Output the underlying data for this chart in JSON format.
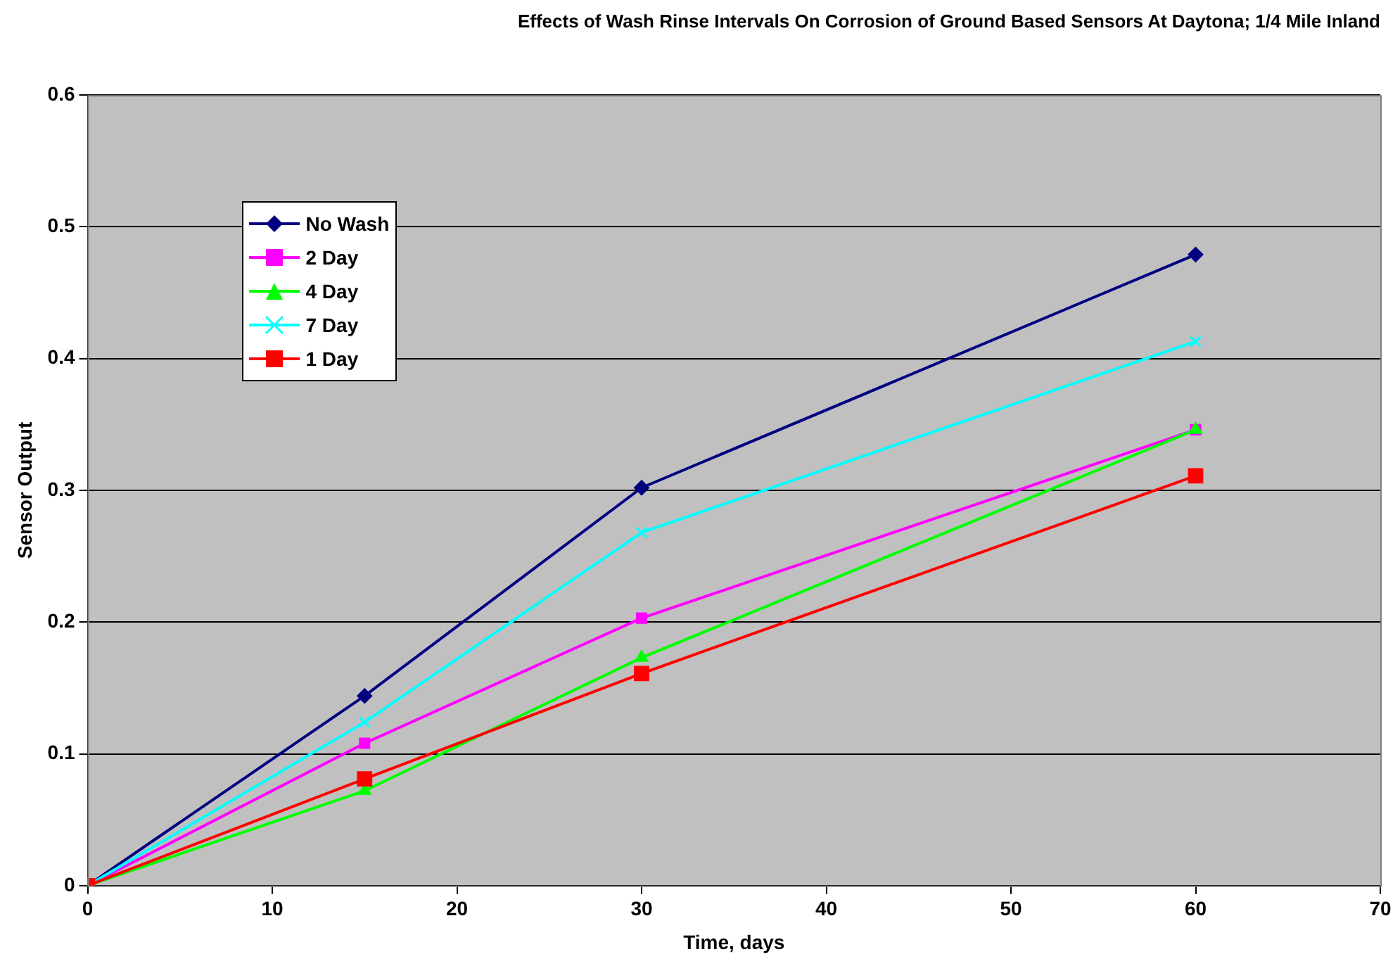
{
  "chart_data": {
    "type": "line",
    "title": "Effects of Wash Rinse Intervals On Corrosion of Ground Based Sensors At Daytona; 1/4 Mile Inland",
    "xlabel": "Time, days",
    "ylabel": "Sensor Output",
    "x": [
      0,
      15,
      30,
      60
    ],
    "series": [
      {
        "name": "No Wash",
        "color": "#000080",
        "marker": "diamond",
        "values": [
          0,
          0.144,
          0.302,
          0.479
        ]
      },
      {
        "name": "2 Day",
        "color": "#ff00ff",
        "marker": "square",
        "values": [
          0,
          0.108,
          0.203,
          0.346
        ]
      },
      {
        "name": "4 Day",
        "color": "#00ff00",
        "marker": "triangle",
        "values": [
          0,
          0.072,
          0.173,
          0.346
        ]
      },
      {
        "name": "7 Day",
        "color": "#00ffff",
        "marker": "cross",
        "values": [
          0,
          0.124,
          0.268,
          0.413
        ]
      },
      {
        "name": "1 Day",
        "color": "#ff0000",
        "marker": "square",
        "values": [
          0,
          0.081,
          0.161,
          0.311
        ]
      }
    ],
    "xlim": [
      0,
      70
    ],
    "xticks": [
      0,
      10,
      20,
      30,
      40,
      50,
      60,
      70
    ],
    "ylim": [
      0,
      0.6
    ],
    "yticks": [
      0,
      0.1,
      0.2,
      0.3,
      0.4,
      0.5,
      0.6
    ],
    "grid": "y",
    "legend": "top left",
    "line_style": "solid"
  }
}
